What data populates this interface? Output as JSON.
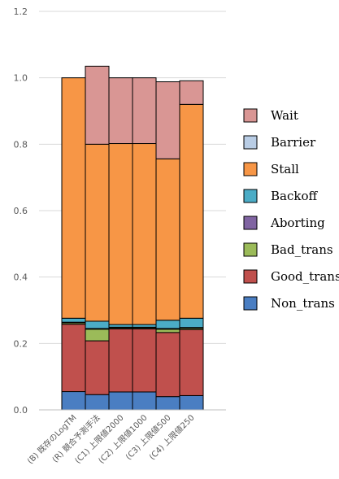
{
  "chart_data": {
    "type": "bar",
    "stacked": true,
    "categories": [
      "(B) 既存のLogTM",
      "(R) 競合予測手法",
      "(C1) 上限値2000",
      "(C2) 上限値1000",
      "(C3) 上限値500",
      "(C4) 上限値250"
    ],
    "series": [
      {
        "name": "Non_trans",
        "color": "#4A7EC2",
        "values": [
          0.055,
          0.046,
          0.054,
          0.054,
          0.04,
          0.043
        ]
      },
      {
        "name": "Good_trans",
        "color": "#C0504D",
        "values": [
          0.203,
          0.162,
          0.19,
          0.19,
          0.193,
          0.199
        ]
      },
      {
        "name": "Bad_trans",
        "color": "#9BBB59",
        "values": [
          0.004,
          0.035,
          0.003,
          0.003,
          0.01,
          0.004
        ]
      },
      {
        "name": "Aborting",
        "color": "#8064A2",
        "values": [
          0.002,
          0.002,
          0.002,
          0.002,
          0.002,
          0.002
        ]
      },
      {
        "name": "Backoff",
        "color": "#4BACC6",
        "values": [
          0.012,
          0.022,
          0.008,
          0.008,
          0.025,
          0.028
        ]
      },
      {
        "name": "Stall",
        "color": "#F79646",
        "values": [
          0.724,
          0.533,
          0.545,
          0.545,
          0.486,
          0.644
        ]
      },
      {
        "name": "Barrier",
        "color": "#B9CDE5",
        "values": [
          0.0,
          0.0,
          0.0,
          0.0,
          0.0,
          0.0
        ]
      },
      {
        "name": "Wait",
        "color": "#D99694",
        "values": [
          0.0,
          0.235,
          0.198,
          0.198,
          0.232,
          0.071
        ]
      }
    ],
    "legend_order": [
      "Wait",
      "Barrier",
      "Stall",
      "Backoff",
      "Aborting",
      "Bad_trans",
      "Good_trans",
      "Non_trans"
    ],
    "yticks": [
      "0.0",
      "0.2",
      "0.4",
      "0.6",
      "0.8",
      "1.0",
      "1.2"
    ],
    "ylim": [
      0,
      1.2
    ],
    "grid": true,
    "legend_position": "right"
  }
}
